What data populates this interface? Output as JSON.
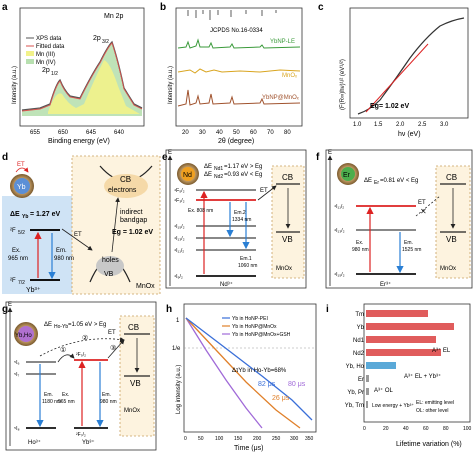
{
  "panels": {
    "a": {
      "letter": "a",
      "tag": "Mn 2p",
      "ylabel": "Intensity (a.u.)",
      "xlabel": "Binding energy (eV)",
      "ticks": [
        "655",
        "650",
        "645",
        "640"
      ],
      "peak1": "2p",
      "peak1_sub": "1/2",
      "peak2": "2p",
      "peak2_sub": "3/2",
      "legend": [
        "XPS data",
        "Fitted data",
        "Mn (III)",
        "Mn (IV)"
      ],
      "colors": {
        "data": "#555555",
        "fit": "#d9534f",
        "mn3": "#f2f28a",
        "mn4": "#b8e0b0"
      }
    },
    "b": {
      "letter": "b",
      "jcpds": "JCPDS No.16-0334",
      "ylabel": "Intensity (a.u.)",
      "xlabel": "2θ (degree)",
      "ticks": [
        "20",
        "30",
        "40",
        "50",
        "60",
        "70",
        "80"
      ],
      "series": [
        "YbNP-LE",
        "MnOₓ",
        "YbNP@MnOₓ"
      ],
      "colors": [
        "#3a9a3a",
        "#d9a520",
        "#a0522d"
      ]
    },
    "c": {
      "letter": "c",
      "ylabel": "(F(R∞)hν)¹/² (eV¹/²)",
      "xlabel": "hν (eV)",
      "ticks": [
        "1.0",
        "1.5",
        "2.0",
        "2.5",
        "3.0"
      ],
      "eg": "Eg= 1.02 eV"
    },
    "d": {
      "letter": "d",
      "et": "ET",
      "ion": "Yb",
      "delta": "ΔE",
      "delta_sub": "Yb",
      "delta_val": " = 1.27 eV",
      "level_upper": "²F",
      "level_upper_sub": "5/2",
      "level_lower": "²F",
      "level_lower_sub": "7/2",
      "ex": "Ex.",
      "ex_nm": "965 nm",
      "em": "Em.",
      "em_nm": "980 nm",
      "ion_label": "Yb³⁺",
      "cb": "CB",
      "electrons": "electrons",
      "indirect1": "indirect",
      "indirect2": "bandgap",
      "eg": "Eg = 1.02 eV",
      "holes": "holes",
      "vb": "VB",
      "host": "MnOx"
    },
    "e": {
      "letter": "e",
      "axis": "E",
      "ion": "Nd",
      "d1": "ΔE",
      "d1_sub": "Nd1",
      "d1_val": "=1.17 eV > Eg",
      "d2": "ΔE",
      "d2_sub": "Nd2",
      "d2_val": "=0.93 eV < Eg",
      "et": "ET",
      "cb": "CB",
      "vb": "VB",
      "host": "MnOx",
      "ex": "Ex. 808 nm",
      "em2": "Em.2",
      "em2_nm": "1334 nm",
      "em1": "Em.1",
      "em1_nm": "1060 nm",
      "levels": [
        "⁴F₅/₂",
        "⁴F₃/₂",
        "⁴I₁₅/₂",
        "⁴I₁₃/₂",
        "⁴I₁₁/₂",
        "⁴I₉/₂"
      ],
      "ion_label": "Nd³⁺"
    },
    "f": {
      "letter": "f",
      "axis": "E",
      "ion": "Er",
      "d1": "ΔE",
      "d1_sub": "Er",
      "d1_val": "=0.81 eV < Eg",
      "et": "ET",
      "cb": "CB",
      "vb": "VB",
      "host": "MnOx",
      "ex": "Ex.",
      "ex_nm": "980 nm",
      "em": "Em.",
      "em_nm": "1525 nm",
      "levels": [
        "⁴I₁₁/₂",
        "⁴I₁₃/₂",
        "⁴I₁₅/₂"
      ],
      "ion_label": "Er³⁺"
    },
    "g": {
      "letter": "g",
      "axis": "E",
      "ion": "Yb,Ho",
      "d1": "ΔE",
      "d1_sub": "Ho-Yb",
      "d1_val": "=1.05 eV > Eg",
      "et": "ET",
      "cb": "CB",
      "vb": "VB",
      "host": "MnOx",
      "steps": [
        "①",
        "②",
        "③"
      ],
      "ex": "Ex.",
      "ex_nm": "965 nm",
      "em_ho": "Em.",
      "em_ho_nm": "1180 nm",
      "em_yb": "Em.",
      "em_yb_nm": "980 nm",
      "ho_levels": [
        "⁵I₆",
        "⁵I₇",
        "⁵I₈"
      ],
      "yb_levels": [
        "²F₅/₂",
        "²F₇/₂"
      ],
      "ho_label": "Ho³⁺",
      "yb_label": "Yb³⁺"
    },
    "h": {
      "letter": "h",
      "ylabel": "Log intensity (a.u.)",
      "xlabel": "Time (μs)",
      "ticks": [
        "0",
        "50",
        "100",
        "150",
        "200",
        "250",
        "300",
        "350"
      ],
      "y_tick": "1/e",
      "y_tick2": "1",
      "legend": [
        "Yb in HoNP-PEI",
        "Yb in HoNP@MnOx",
        "Yb in HoNP@MnOx+GSH"
      ],
      "colors": [
        "#3a6fd8",
        "#e0802a",
        "#a06ad8"
      ],
      "delta": "ΔτYb in Ho-Yb=68%",
      "tau_values": [
        "82 μs",
        "80 μs",
        "26 μs"
      ]
    },
    "i": {
      "letter": "i",
      "xlabel": "Lifetime variation (%)",
      "ticks": [
        "0",
        "20",
        "40",
        "60",
        "80",
        "100"
      ],
      "categories": [
        "Tm",
        "Yb",
        "Nd1",
        "Nd2",
        "Yb, Ho",
        "Er",
        "Yb, Pr",
        "Yb, Tm"
      ],
      "values": [
        62,
        88,
        70,
        75,
        30,
        3,
        3,
        2
      ],
      "colors": [
        "#e05c5c",
        "#e05c5c",
        "#e05c5c",
        "#e05c5c",
        "#5aa9d8",
        "#999999",
        "#999999",
        "#999999"
      ],
      "ann_el": "A³⁺ EL",
      "ann_ybho": "A³⁺ EL + Yb³⁺",
      "ann_ol": "A³⁺ OL",
      "ann_low": "Low energy + Yb³⁺",
      "ann_key1": "EL: emitting level",
      "ann_key2": "OL: other level"
    }
  }
}
